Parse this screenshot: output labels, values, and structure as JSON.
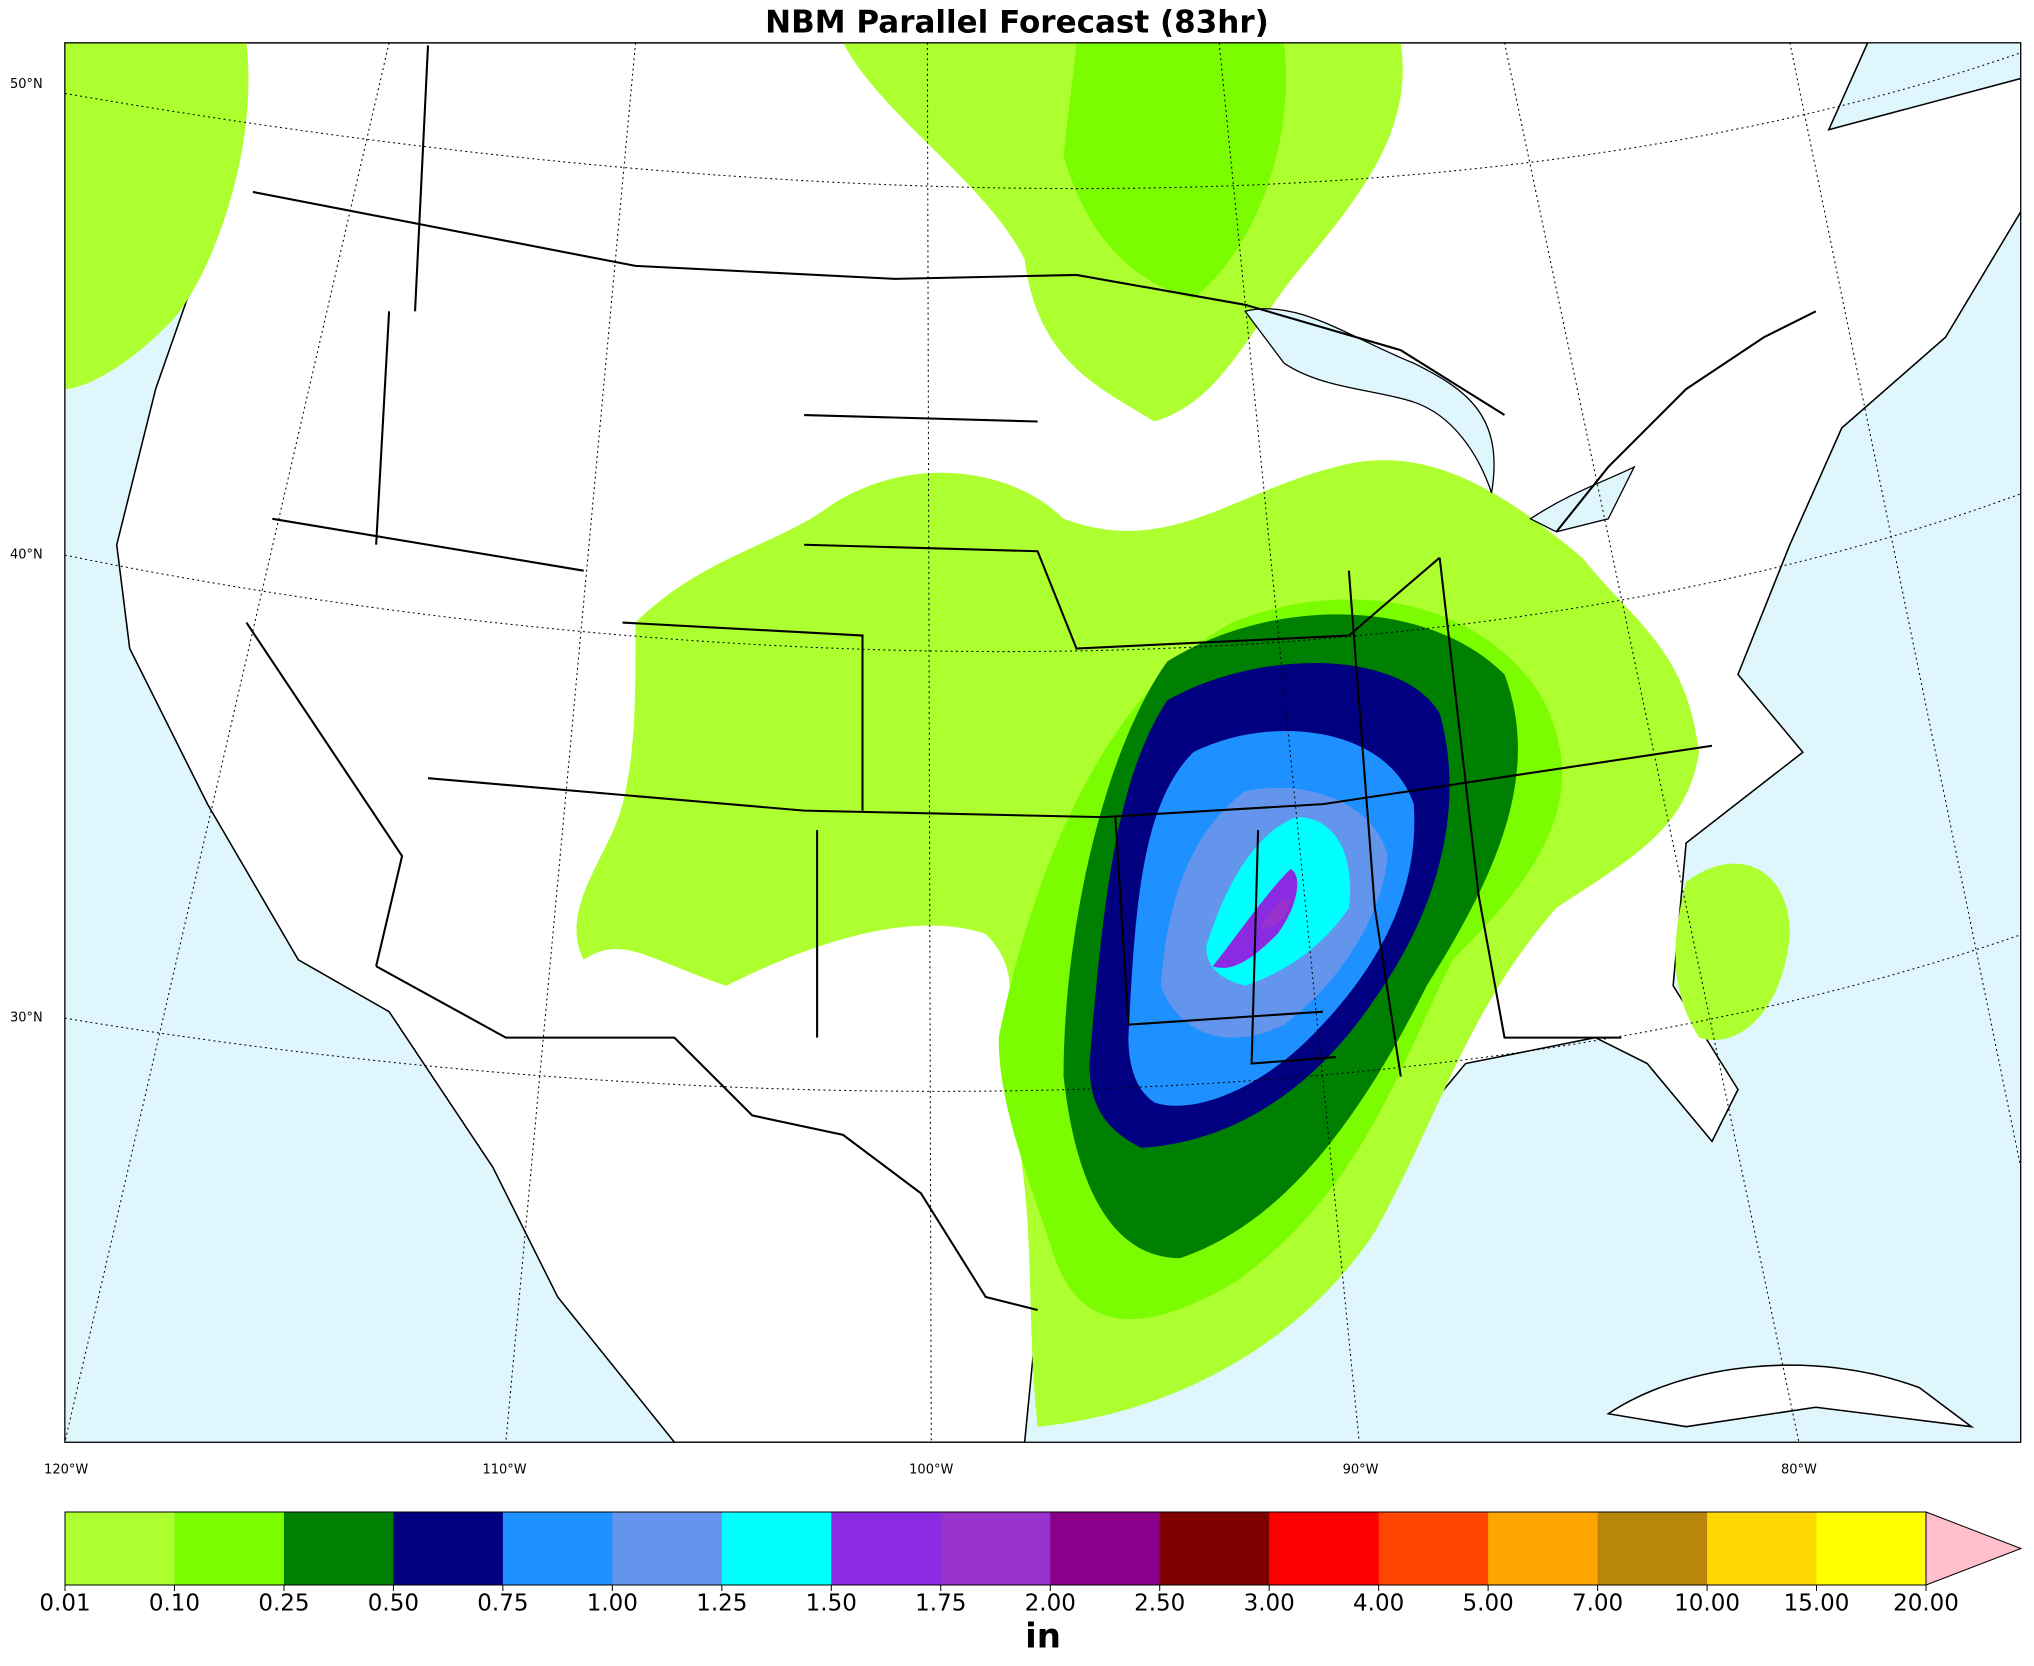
{
  "title": "NBM Parallel Forecast (83hr)",
  "latitude_labels": [
    "50°N",
    "40°N",
    "30°N"
  ],
  "longitude_labels": [
    "120°W",
    "110°W",
    "100°W",
    "90°W",
    "80°W"
  ],
  "colorbar": {
    "unit": "in",
    "bounds": [
      "0.01",
      "0.10",
      "0.25",
      "0.50",
      "0.75",
      "1.00",
      "1.25",
      "1.50",
      "1.75",
      "2.00",
      "2.50",
      "3.00",
      "4.00",
      "5.00",
      "7.00",
      "10.00",
      "15.00",
      "20.00"
    ],
    "colors": [
      "#adff2f",
      "#7cfc00",
      "#008000",
      "#000080",
      "#1e90ff",
      "#6495ed",
      "#00ffff",
      "#8a2be2",
      "#9932cc",
      "#8b008b",
      "#800000",
      "#ff0000",
      "#ff4500",
      "#ffa500",
      "#b8860b",
      "#ffd700",
      "#ffff00"
    ],
    "extend_color": "#ffc0cb"
  }
}
